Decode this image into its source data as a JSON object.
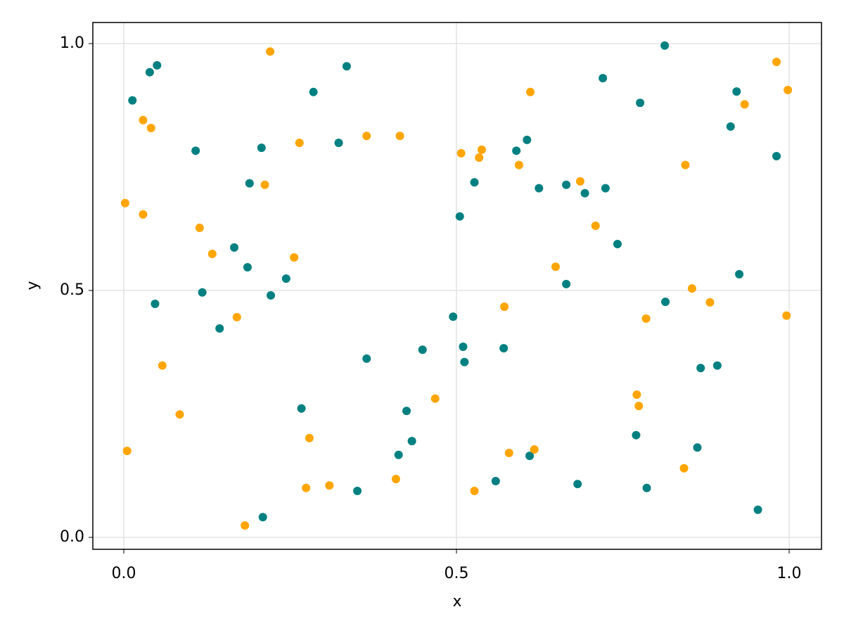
{
  "chart_data": {
    "type": "scatter",
    "x_label": "x",
    "y_label": "y",
    "xlim": [
      -0.0465,
      1.0486
    ],
    "ylim": [
      -0.0242,
      1.0427
    ],
    "xticks": [
      {
        "value": 0,
        "label": "0.0"
      },
      {
        "value": 0.5,
        "label": "0.5"
      },
      {
        "value": 1,
        "label": "1.0"
      }
    ],
    "yticks": [
      {
        "value": 0,
        "label": "0.0"
      },
      {
        "value": 0.5,
        "label": "0.5"
      },
      {
        "value": 1,
        "label": "1.0"
      }
    ],
    "grid": true,
    "series": [
      {
        "color": "#008080",
        "x": [
          0.013,
          0.039,
          0.05,
          0.047,
          0.108,
          0.118,
          0.144,
          0.166,
          0.186,
          0.189,
          0.207,
          0.209,
          0.221,
          0.244,
          0.267,
          0.285,
          0.323,
          0.335,
          0.351,
          0.365,
          0.413,
          0.425,
          0.433,
          0.449,
          0.495,
          0.505,
          0.51,
          0.512,
          0.527,
          0.559,
          0.571,
          0.59,
          0.606,
          0.61,
          0.624,
          0.665,
          0.665,
          0.682,
          0.693,
          0.72,
          0.724,
          0.742,
          0.77,
          0.776,
          0.786,
          0.813,
          0.814,
          0.862,
          0.867,
          0.892,
          0.912,
          0.921,
          0.925,
          0.953,
          0.981
        ],
        "values": [
          0.885,
          0.942,
          0.956,
          0.473,
          0.783,
          0.496,
          0.423,
          0.587,
          0.547,
          0.717,
          0.789,
          0.041,
          0.49,
          0.524,
          0.261,
          0.902,
          0.799,
          0.954,
          0.094,
          0.362,
          0.167,
          0.256,
          0.195,
          0.38,
          0.447,
          0.65,
          0.386,
          0.355,
          0.719,
          0.114,
          0.383,
          0.783,
          0.805,
          0.165,
          0.707,
          0.714,
          0.513,
          0.108,
          0.697,
          0.93,
          0.707,
          0.594,
          0.207,
          0.88,
          0.1,
          0.996,
          0.477,
          0.182,
          0.343,
          0.348,
          0.832,
          0.903,
          0.533,
          0.056,
          0.772
        ]
      },
      {
        "color": "#ffa500",
        "x": [
          0.002,
          0.005,
          0.029,
          0.029,
          0.041,
          0.058,
          0.084,
          0.114,
          0.133,
          0.17,
          0.182,
          0.212,
          0.22,
          0.256,
          0.264,
          0.274,
          0.279,
          0.309,
          0.365,
          0.409,
          0.415,
          0.468,
          0.507,
          0.527,
          0.534,
          0.538,
          0.572,
          0.579,
          0.594,
          0.611,
          0.617,
          0.649,
          0.686,
          0.709,
          0.771,
          0.774,
          0.785,
          0.842,
          0.844,
          0.854,
          0.881,
          0.933,
          0.981,
          0.996,
          0.998
        ],
        "values": [
          0.677,
          0.175,
          0.845,
          0.654,
          0.829,
          0.348,
          0.249,
          0.627,
          0.574,
          0.446,
          0.024,
          0.714,
          0.984,
          0.567,
          0.799,
          0.1,
          0.201,
          0.105,
          0.813,
          0.118,
          0.813,
          0.281,
          0.778,
          0.094,
          0.769,
          0.785,
          0.467,
          0.171,
          0.754,
          0.902,
          0.178,
          0.548,
          0.721,
          0.631,
          0.289,
          0.266,
          0.443,
          0.14,
          0.754,
          0.504,
          0.476,
          0.877,
          0.963,
          0.449,
          0.906
        ]
      }
    ]
  }
}
